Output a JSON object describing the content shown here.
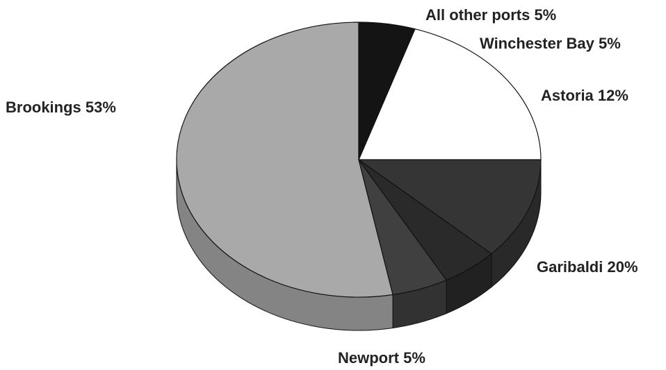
{
  "chart_data": {
    "type": "pie",
    "style": "3d",
    "slices": [
      {
        "label": "Brookings",
        "value": 53,
        "display": "Brookings 53%",
        "color": "#a9a9a9"
      },
      {
        "label": "All other ports",
        "value": 5,
        "display": "All other ports 5%",
        "color": "#404040"
      },
      {
        "label": "Winchester Bay",
        "value": 5,
        "display": "Winchester Bay 5%",
        "color": "#2a2a2a"
      },
      {
        "label": "Astoria",
        "value": 12,
        "display": "Astoria 12%",
        "color": "#353535"
      },
      {
        "label": "Garibaldi",
        "value": 20,
        "display": "Garibaldi 20%",
        "color": "#ffffff"
      },
      {
        "label": "Newport",
        "value": 5,
        "display": "Newport 5%",
        "color": "#141414"
      }
    ],
    "depth_color": "#2c2c2c",
    "outline_color": "#111111"
  }
}
